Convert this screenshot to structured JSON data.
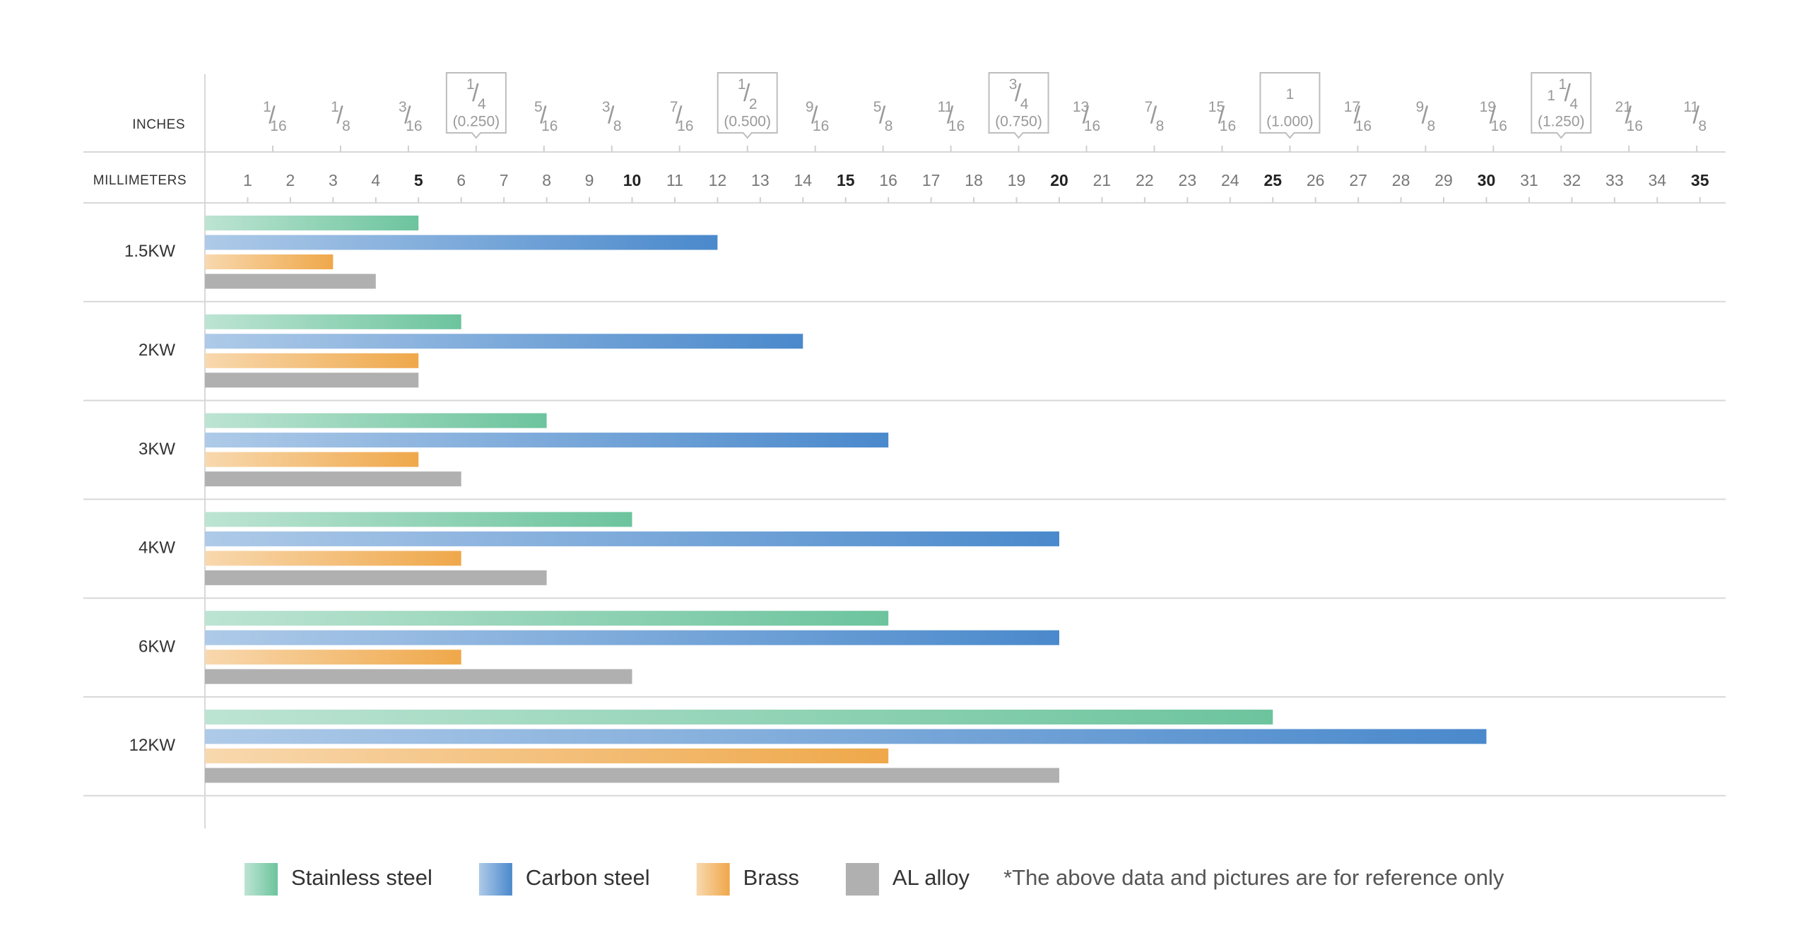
{
  "chart_data": {
    "type": "hbar",
    "xlabel": "MILLIMETERS",
    "x2label": "INCHES",
    "categories": [
      "1.5KW",
      "2KW",
      "3KW",
      "4KW",
      "6KW",
      "12KW"
    ],
    "series": [
      {
        "name": "Stainless steel",
        "color": "#6cc49d",
        "values": [
          5,
          6,
          8,
          10,
          16,
          25
        ]
      },
      {
        "name": "Carbon steel",
        "color": "#4a89cc",
        "values": [
          12,
          14,
          16,
          20,
          20,
          30
        ]
      },
      {
        "name": "Brass",
        "color": "#efa84a",
        "values": [
          3,
          5,
          5,
          6,
          6,
          16
        ]
      },
      {
        "name": "AL alloy",
        "color": "#b0b0b0",
        "values": [
          4,
          5,
          6,
          8,
          10,
          20
        ]
      }
    ],
    "xlim": [
      0,
      35.6
    ],
    "xticks": [
      1,
      2,
      3,
      4,
      5,
      6,
      7,
      8,
      9,
      10,
      11,
      12,
      13,
      14,
      15,
      16,
      17,
      18,
      19,
      20,
      21,
      22,
      23,
      24,
      25,
      26,
      27,
      28,
      29,
      30,
      31,
      32,
      33,
      34,
      35
    ],
    "x2ticks": [
      {
        "value": 1.5875,
        "label": "1/16"
      },
      {
        "value": 3.175,
        "label": "1/8"
      },
      {
        "value": 4.7625,
        "label": "3/16"
      },
      {
        "value": 6.35,
        "label": "1/4",
        "decimal": "(0.250)"
      },
      {
        "value": 7.9375,
        "label": "5/16"
      },
      {
        "value": 9.525,
        "label": "3/8"
      },
      {
        "value": 11.1125,
        "label": "7/16"
      },
      {
        "value": 12.7,
        "label": "1/2",
        "decimal": "(0.500)"
      },
      {
        "value": 14.2875,
        "label": "9/16"
      },
      {
        "value": 15.875,
        "label": "5/8"
      },
      {
        "value": 17.4625,
        "label": "11/16"
      },
      {
        "value": 19.05,
        "label": "3/4",
        "decimal": "(0.750)"
      },
      {
        "value": 20.6375,
        "label": "13/16"
      },
      {
        "value": 22.225,
        "label": "7/8"
      },
      {
        "value": 23.8125,
        "label": "15/16"
      },
      {
        "value": 25.4,
        "label": "1",
        "decimal": "(1.000)"
      },
      {
        "value": 26.9875,
        "label": "17/16"
      },
      {
        "value": 28.575,
        "label": "9/8"
      },
      {
        "value": 30.1625,
        "label": "19/16"
      },
      {
        "value": 31.75,
        "label": "1 1/4",
        "decimal": "(1.250)"
      },
      {
        "value": 33.3375,
        "label": "21/16"
      },
      {
        "value": 34.925,
        "label": "11/8"
      }
    ],
    "note": "*The above data and pictures are for reference only"
  }
}
